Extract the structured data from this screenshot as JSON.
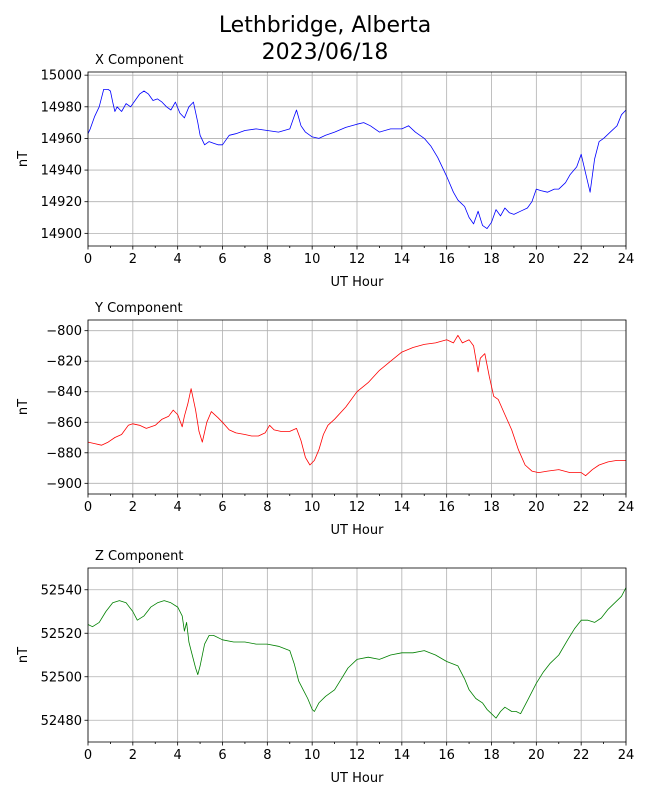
{
  "figure": {
    "title_line1": "Lethbridge, Alberta",
    "title_line2": "2023/06/18"
  },
  "chart_data": [
    {
      "type": "line",
      "title": "X Component",
      "xlabel": "UT Hour",
      "ylabel": "nT",
      "xlim": [
        0,
        24
      ],
      "ylim": [
        14892,
        15002
      ],
      "xticks": [
        0,
        2,
        4,
        6,
        8,
        10,
        12,
        14,
        16,
        18,
        20,
        22,
        24
      ],
      "yticks": [
        14900,
        14920,
        14940,
        14960,
        14980,
        15000
      ],
      "grid": true,
      "color": "#0000ff",
      "series": [
        {
          "x": [
            0,
            0.1,
            0.3,
            0.5,
            0.7,
            0.9,
            1.0,
            1.1,
            1.2,
            1.3,
            1.5,
            1.7,
            1.9,
            2.1,
            2.3,
            2.5,
            2.7,
            2.9,
            3.1,
            3.3,
            3.5,
            3.7,
            3.9,
            4.1,
            4.3,
            4.5,
            4.7,
            4.9,
            5.0,
            5.2,
            5.4,
            5.6,
            5.8,
            6.0,
            6.3,
            6.6,
            7.0,
            7.5,
            8.0,
            8.5,
            9.0,
            9.2,
            9.3,
            9.5,
            9.7,
            10.0,
            10.3,
            10.6,
            11.0,
            11.5,
            12.0,
            12.3,
            12.6,
            13.0,
            13.5,
            14.0,
            14.3,
            14.6,
            15.0,
            15.3,
            15.6,
            15.8,
            16.0,
            16.3,
            16.5,
            16.8,
            17.0,
            17.2,
            17.4,
            17.6,
            17.8,
            18.0,
            18.2,
            18.4,
            18.6,
            18.8,
            19.0,
            19.3,
            19.6,
            19.8,
            20.0,
            20.2,
            20.5,
            20.8,
            21.0,
            21.3,
            21.5,
            21.8,
            22.0,
            22.2,
            22.4,
            22.6,
            22.8,
            23.0,
            23.3,
            23.6,
            23.8,
            24.0
          ],
          "y": [
            14963,
            14966,
            14974,
            14980,
            14991,
            14991,
            14990,
            14983,
            14977,
            14980,
            14977,
            14982,
            14980,
            14984,
            14988,
            14990,
            14988,
            14984,
            14985,
            14983,
            14980,
            14978,
            14983,
            14976,
            14973,
            14980,
            14983,
            14970,
            14962,
            14956,
            14958,
            14957,
            14956,
            14956,
            14962,
            14963,
            14965,
            14966,
            14965,
            14964,
            14966,
            14974,
            14978,
            14968,
            14964,
            14961,
            14960,
            14962,
            14964,
            14967,
            14969,
            14970,
            14968,
            14964,
            14966,
            14966,
            14968,
            14964,
            14960,
            14955,
            14948,
            14942,
            14936,
            14926,
            14921,
            14917,
            14910,
            14906,
            14914,
            14905,
            14903,
            14907,
            14915,
            14911,
            14916,
            14913,
            14912,
            14914,
            14916,
            14920,
            14928,
            14927,
            14926,
            14928,
            14928,
            14932,
            14937,
            14942,
            14950,
            14938,
            14926,
            14947,
            14958,
            14960,
            14964,
            14968,
            14975,
            14978
          ]
        }
      ]
    },
    {
      "type": "line",
      "title": "Y Component",
      "xlabel": "UT Hour",
      "ylabel": "nT",
      "xlim": [
        0,
        24
      ],
      "ylim": [
        -907,
        -793
      ],
      "xticks": [
        0,
        2,
        4,
        6,
        8,
        10,
        12,
        14,
        16,
        18,
        20,
        22,
        24
      ],
      "yticks": [
        -900,
        -880,
        -860,
        -840,
        -820,
        -800
      ],
      "grid": true,
      "color": "#ff0000",
      "series": [
        {
          "x": [
            0,
            0.3,
            0.6,
            0.9,
            1.2,
            1.5,
            1.8,
            2.0,
            2.3,
            2.6,
            3.0,
            3.3,
            3.6,
            3.8,
            4.0,
            4.2,
            4.3,
            4.45,
            4.6,
            4.8,
            4.95,
            5.1,
            5.3,
            5.5,
            5.8,
            6.0,
            6.3,
            6.6,
            7.0,
            7.3,
            7.6,
            7.9,
            8.1,
            8.3,
            8.6,
            9.0,
            9.3,
            9.5,
            9.7,
            9.9,
            10.1,
            10.3,
            10.5,
            10.7,
            11.0,
            11.5,
            12.0,
            12.5,
            13.0,
            13.5,
            14.0,
            14.5,
            15.0,
            15.5,
            16.0,
            16.3,
            16.5,
            16.7,
            17.0,
            17.2,
            17.4,
            17.5,
            17.7,
            17.9,
            18.1,
            18.3,
            18.6,
            18.9,
            19.2,
            19.5,
            19.8,
            20.1,
            20.5,
            21.0,
            21.5,
            22.0,
            22.2,
            22.5,
            22.8,
            23.2,
            23.6,
            24.0
          ],
          "y": [
            -873,
            -874,
            -875,
            -873,
            -870,
            -868,
            -862,
            -861,
            -862,
            -864,
            -862,
            -858,
            -856,
            -852,
            -855,
            -863,
            -856,
            -848,
            -838,
            -852,
            -866,
            -873,
            -860,
            -853,
            -857,
            -860,
            -865,
            -867,
            -868,
            -869,
            -869,
            -867,
            -862,
            -865,
            -866,
            -866,
            -864,
            -872,
            -883,
            -888,
            -885,
            -878,
            -868,
            -862,
            -858,
            -850,
            -840,
            -834,
            -826,
            -820,
            -814,
            -811,
            -809,
            -808,
            -806,
            -808,
            -803,
            -808,
            -806,
            -810,
            -827,
            -818,
            -815,
            -830,
            -843,
            -845,
            -855,
            -865,
            -878,
            -888,
            -892,
            -893,
            -892,
            -891,
            -893,
            -893,
            -895,
            -891,
            -888,
            -886,
            -885,
            -885
          ]
        }
      ]
    },
    {
      "type": "line",
      "title": "Z Component",
      "xlabel": "UT Hour",
      "ylabel": "nT",
      "xlim": [
        0,
        24
      ],
      "ylim": [
        52470,
        52550
      ],
      "xticks": [
        0,
        2,
        4,
        6,
        8,
        10,
        12,
        14,
        16,
        18,
        20,
        22,
        24
      ],
      "yticks": [
        52480,
        52500,
        52520,
        52540
      ],
      "grid": true,
      "color": "#008000",
      "series": [
        {
          "x": [
            0,
            0.2,
            0.5,
            0.8,
            1.1,
            1.4,
            1.7,
            2.0,
            2.2,
            2.5,
            2.8,
            3.1,
            3.4,
            3.7,
            4.0,
            4.2,
            4.3,
            4.4,
            4.5,
            4.6,
            4.8,
            4.9,
            5.0,
            5.2,
            5.4,
            5.6,
            6.0,
            6.5,
            7.0,
            7.5,
            8.0,
            8.5,
            9.0,
            9.2,
            9.4,
            9.6,
            9.8,
            10.0,
            10.1,
            10.3,
            10.6,
            11.0,
            11.3,
            11.6,
            12.0,
            12.5,
            13.0,
            13.5,
            14.0,
            14.5,
            15.0,
            15.5,
            16.0,
            16.5,
            16.8,
            17.0,
            17.3,
            17.6,
            17.8,
            18.0,
            18.2,
            18.4,
            18.6,
            18.9,
            19.1,
            19.3,
            19.6,
            20.0,
            20.3,
            20.6,
            21.0,
            21.4,
            21.7,
            22.0,
            22.3,
            22.6,
            22.9,
            23.2,
            23.5,
            23.8,
            24.0
          ],
          "y": [
            52524,
            52523,
            52525,
            52530,
            52534,
            52535,
            52534,
            52530,
            52526,
            52528,
            52532,
            52534,
            52535,
            52534,
            52532,
            52528,
            52521,
            52525,
            52516,
            52512,
            52504,
            52501,
            52505,
            52515,
            52519,
            52519,
            52517,
            52516,
            52516,
            52515,
            52515,
            52514,
            52512,
            52506,
            52498,
            52494,
            52490,
            52485,
            52484,
            52488,
            52491,
            52494,
            52499,
            52504,
            52508,
            52509,
            52508,
            52510,
            52511,
            52511,
            52512,
            52510,
            52507,
            52505,
            52499,
            52494,
            52490,
            52488,
            52485,
            52483,
            52481,
            52484,
            52486,
            52484,
            52484,
            52483,
            52489,
            52497,
            52502,
            52506,
            52510,
            52517,
            52522,
            52526,
            52526,
            52525,
            52527,
            52531,
            52534,
            52537,
            52541
          ]
        }
      ]
    }
  ]
}
